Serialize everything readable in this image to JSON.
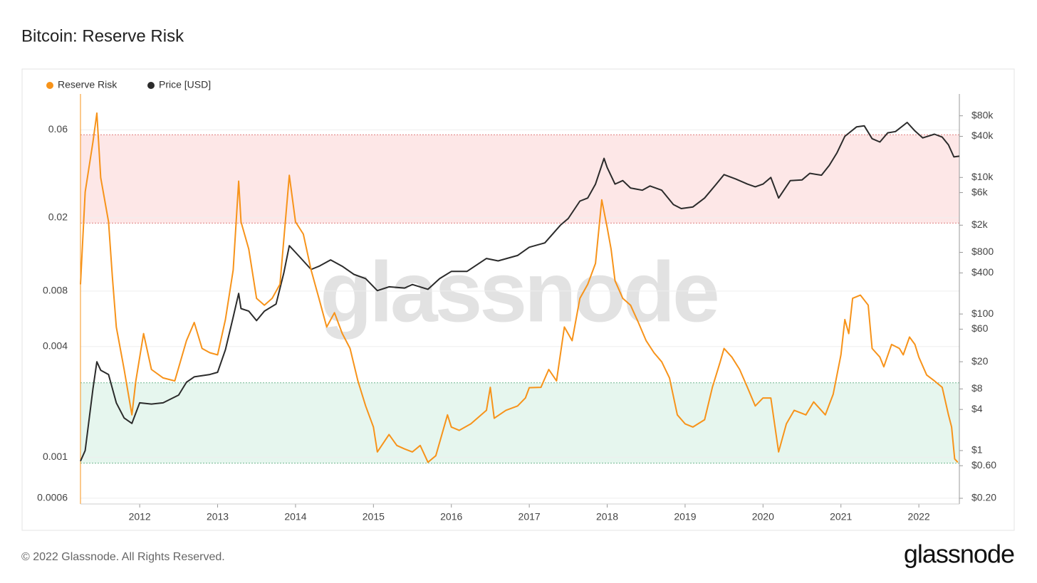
{
  "chart_data": {
    "type": "line",
    "title": "Bitcoin: Reserve Risk",
    "watermark": "glassnode",
    "footer": "© 2022 Glassnode. All Rights Reserved.",
    "logo": "glassnode",
    "log_scale": true,
    "grid": true,
    "legend": "top-left",
    "xlim": [
      2011.24,
      2022.52
    ],
    "xticks": [
      2012,
      2013,
      2014,
      2015,
      2016,
      2017,
      2018,
      2019,
      2020,
      2021,
      2022
    ],
    "ylim": [
      0.000558,
      0.094
    ],
    "yticks": [
      0.0006,
      0.001,
      0.004,
      0.008,
      0.02,
      0.06
    ],
    "y2lim": [
      0.165,
      167000
    ],
    "y2ticks": [
      {
        "value": 0.2,
        "label": "$0.20"
      },
      {
        "value": 0.6,
        "label": "$0.60"
      },
      {
        "value": 1,
        "label": "$1"
      },
      {
        "value": 4,
        "label": "$4"
      },
      {
        "value": 8,
        "label": "$8"
      },
      {
        "value": 20,
        "label": "$20"
      },
      {
        "value": 60,
        "label": "$60"
      },
      {
        "value": 100,
        "label": "$100"
      },
      {
        "value": 400,
        "label": "$400"
      },
      {
        "value": 800,
        "label": "$800"
      },
      {
        "value": 2000,
        "label": "$2k"
      },
      {
        "value": 6000,
        "label": "$6k"
      },
      {
        "value": 10000,
        "label": "$10k"
      },
      {
        "value": 40000,
        "label": "$40k"
      },
      {
        "value": 80000,
        "label": "$80k"
      }
    ],
    "bands": [
      {
        "from": 0.0187,
        "to": 0.0564,
        "color": "#fde7e7",
        "edge": "#e08080"
      },
      {
        "from": 0.00093,
        "to": 0.00254,
        "color": "#e6f6ee",
        "edge": "#70b890"
      }
    ],
    "series": [
      {
        "name": "Reserve Risk",
        "color": "#f7931a",
        "x": [
          2011.24,
          2011.3,
          2011.4,
          2011.45,
          2011.5,
          2011.6,
          2011.65,
          2011.7,
          2011.8,
          2011.9,
          2011.95,
          2012.05,
          2012.15,
          2012.3,
          2012.45,
          2012.6,
          2012.7,
          2012.8,
          2012.9,
          2013.0,
          2013.1,
          2013.2,
          2013.27,
          2013.3,
          2013.4,
          2013.5,
          2013.6,
          2013.7,
          2013.8,
          2013.92,
          2014.0,
          2014.1,
          2014.2,
          2014.3,
          2014.4,
          2014.5,
          2014.6,
          2014.7,
          2014.8,
          2014.9,
          2015.0,
          2015.05,
          2015.2,
          2015.3,
          2015.4,
          2015.5,
          2015.6,
          2015.7,
          2015.8,
          2015.95,
          2016.0,
          2016.1,
          2016.25,
          2016.45,
          2016.5,
          2016.55,
          2016.7,
          2016.85,
          2016.95,
          2017.0,
          2017.15,
          2017.25,
          2017.35,
          2017.45,
          2017.55,
          2017.65,
          2017.75,
          2017.85,
          2017.93,
          2018.0,
          2018.05,
          2018.1,
          2018.2,
          2018.3,
          2018.4,
          2018.5,
          2018.6,
          2018.7,
          2018.8,
          2018.9,
          2019.0,
          2019.1,
          2019.25,
          2019.35,
          2019.45,
          2019.5,
          2019.6,
          2019.7,
          2019.8,
          2019.9,
          2020.0,
          2020.1,
          2020.2,
          2020.3,
          2020.4,
          2020.55,
          2020.65,
          2020.8,
          2020.9,
          2021.0,
          2021.05,
          2021.1,
          2021.15,
          2021.25,
          2021.35,
          2021.4,
          2021.5,
          2021.55,
          2021.65,
          2021.75,
          2021.8,
          2021.88,
          2021.95,
          2022.0,
          2022.1,
          2022.2,
          2022.3,
          2022.38,
          2022.42,
          2022.46,
          2022.5
        ],
        "values": [
          0.0087,
          0.0276,
          0.0516,
          0.074,
          0.033,
          0.019,
          0.0094,
          0.0051,
          0.003,
          0.0017,
          0.0026,
          0.0047,
          0.003,
          0.0027,
          0.0026,
          0.0043,
          0.0054,
          0.0039,
          0.0037,
          0.0036,
          0.0056,
          0.0104,
          0.0316,
          0.019,
          0.0135,
          0.0073,
          0.0067,
          0.0073,
          0.0087,
          0.034,
          0.019,
          0.0163,
          0.0104,
          0.0073,
          0.0051,
          0.0061,
          0.0047,
          0.0039,
          0.0026,
          0.0019,
          0.00146,
          0.00107,
          0.00133,
          0.00116,
          0.00111,
          0.00107,
          0.00116,
          0.00094,
          0.00102,
          0.0017,
          0.00146,
          0.0014,
          0.00152,
          0.0018,
          0.0024,
          0.00163,
          0.0018,
          0.0019,
          0.0021,
          0.00239,
          0.0024,
          0.003,
          0.0026,
          0.0051,
          0.0043,
          0.0073,
          0.0087,
          0.0113,
          0.025,
          0.0177,
          0.0135,
          0.0091,
          0.0073,
          0.0067,
          0.0054,
          0.0043,
          0.0037,
          0.0033,
          0.0027,
          0.0017,
          0.00152,
          0.00146,
          0.0016,
          0.0024,
          0.0033,
          0.0039,
          0.0035,
          0.003,
          0.0024,
          0.0019,
          0.0021,
          0.0021,
          0.00107,
          0.00152,
          0.0018,
          0.0017,
          0.002,
          0.0017,
          0.0022,
          0.0036,
          0.0056,
          0.0047,
          0.0073,
          0.0076,
          0.0067,
          0.0039,
          0.0035,
          0.0031,
          0.0041,
          0.0039,
          0.0036,
          0.0045,
          0.0041,
          0.0035,
          0.0028,
          0.0026,
          0.0024,
          0.0017,
          0.00146,
          0.00098,
          0.00094
        ]
      },
      {
        "name": "Price [USD]",
        "color": "#2b2b2b",
        "axis": "y2",
        "x": [
          2011.24,
          2011.3,
          2011.4,
          2011.45,
          2011.5,
          2011.6,
          2011.7,
          2011.8,
          2011.9,
          2012.0,
          2012.15,
          2012.3,
          2012.5,
          2012.6,
          2012.7,
          2012.9,
          2013.0,
          2013.1,
          2013.2,
          2013.27,
          2013.3,
          2013.4,
          2013.5,
          2013.6,
          2013.75,
          2013.85,
          2013.92,
          2014.0,
          2014.1,
          2014.2,
          2014.3,
          2014.45,
          2014.6,
          2014.75,
          2014.9,
          2015.05,
          2015.2,
          2015.4,
          2015.5,
          2015.7,
          2015.85,
          2016.0,
          2016.2,
          2016.45,
          2016.6,
          2016.85,
          2017.0,
          2017.2,
          2017.4,
          2017.5,
          2017.65,
          2017.75,
          2017.85,
          2017.96,
          2018.0,
          2018.1,
          2018.2,
          2018.3,
          2018.45,
          2018.55,
          2018.7,
          2018.85,
          2018.95,
          2019.1,
          2019.25,
          2019.4,
          2019.5,
          2019.65,
          2019.8,
          2019.9,
          2020.0,
          2020.1,
          2020.2,
          2020.35,
          2020.5,
          2020.6,
          2020.75,
          2020.85,
          2020.95,
          2021.05,
          2021.2,
          2021.3,
          2021.4,
          2021.5,
          2021.6,
          2021.7,
          2021.85,
          2021.95,
          2022.05,
          2022.2,
          2022.3,
          2022.38,
          2022.45,
          2022.52
        ],
        "values": [
          0.7,
          1,
          8,
          20,
          15,
          13,
          5,
          3,
          2.5,
          5,
          4.8,
          5,
          6.5,
          10,
          12,
          13,
          14,
          30,
          90,
          200,
          120,
          110,
          80,
          110,
          140,
          400,
          1000,
          800,
          600,
          450,
          500,
          620,
          500,
          380,
          330,
          220,
          250,
          240,
          270,
          230,
          330,
          420,
          420,
          650,
          600,
          720,
          950,
          1100,
          2000,
          2500,
          4500,
          5000,
          8000,
          19000,
          14000,
          8000,
          9000,
          7000,
          6500,
          7500,
          6500,
          4000,
          3500,
          3700,
          5000,
          8000,
          11000,
          9500,
          8000,
          7300,
          8000,
          10000,
          5000,
          9000,
          9200,
          11500,
          10800,
          15000,
          23000,
          40000,
          55000,
          57000,
          37000,
          33000,
          45000,
          47000,
          64000,
          48000,
          38000,
          43000,
          39000,
          30000,
          20000,
          20500
        ]
      }
    ]
  }
}
